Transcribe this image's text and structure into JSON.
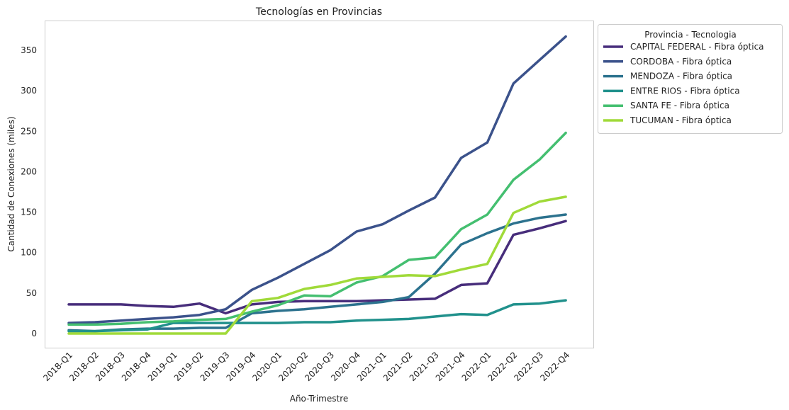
{
  "chart_data": {
    "type": "line",
    "title": "Tecnologías en Provincias",
    "xlabel": "Año-Trimestre",
    "ylabel": "Cantidad de Conexiones (miles)",
    "ylim": [
      -17,
      386
    ],
    "yticks": [
      0,
      50,
      100,
      150,
      200,
      250,
      300,
      350
    ],
    "grid": false,
    "legend_title": "Provincia - Tecnologia",
    "legend_position": "outside-top-right",
    "categories": [
      "2018-Q1",
      "2018-Q2",
      "2018-Q3",
      "2018-Q4",
      "2019-Q1",
      "2019-Q2",
      "2019-Q3",
      "2019-Q4",
      "2020-Q1",
      "2020-Q2",
      "2020-Q3",
      "2020-Q4",
      "2021-Q1",
      "2021-Q2",
      "2021-Q3",
      "2021-Q4",
      "2022-Q1",
      "2022-Q2",
      "2022-Q3",
      "2022-Q4"
    ],
    "series": [
      {
        "name": "CAPITAL FEDERAL - Fibra óptica",
        "color": "#472d7b",
        "values": [
          36,
          36,
          36,
          34,
          33,
          37,
          25,
          36,
          39,
          40,
          40,
          40,
          41,
          42,
          43,
          60,
          62,
          122,
          130,
          139
        ]
      },
      {
        "name": "CORDOBA - Fibra óptica",
        "color": "#3b528b",
        "values": [
          13,
          14,
          16,
          18,
          20,
          23,
          30,
          54,
          69,
          86,
          103,
          126,
          135,
          152,
          168,
          217,
          236,
          309,
          338,
          367
        ]
      },
      {
        "name": "MENDOZA - Fibra óptica",
        "color": "#2c728e",
        "values": [
          4,
          3,
          5,
          6,
          6,
          7,
          7,
          25,
          28,
          30,
          33,
          36,
          39,
          45,
          74,
          110,
          124,
          136,
          143,
          147
        ]
      },
      {
        "name": "ENTRE RIOS - Fibra óptica",
        "color": "#21918c",
        "values": [
          3,
          3,
          4,
          5,
          13,
          13,
          13,
          13,
          13,
          14,
          14,
          16,
          17,
          18,
          21,
          24,
          23,
          36,
          37,
          41
        ]
      },
      {
        "name": "SANTA FE - Fibra óptica",
        "color": "#44bf70",
        "values": [
          11,
          11,
          12,
          14,
          15,
          17,
          18,
          27,
          35,
          47,
          46,
          63,
          71,
          91,
          94,
          129,
          147,
          190,
          215,
          248
        ]
      },
      {
        "name": "TUCUMAN - Fibra óptica",
        "color": "#a0da39",
        "values": [
          0,
          0,
          0,
          0,
          0,
          0,
          0,
          40,
          44,
          55,
          60,
          68,
          70,
          72,
          71,
          79,
          86,
          149,
          163,
          169
        ]
      }
    ]
  }
}
